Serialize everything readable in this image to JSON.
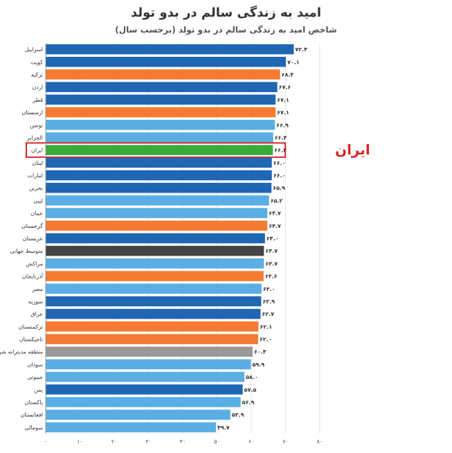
{
  "chart_data": {
    "type": "bar",
    "orientation": "horizontal",
    "title": "امید به زندگی سالم در بدو تولد",
    "subtitle": "شاخص امید به زندگی سالم در بدو تولد (برحسب سال)",
    "categories": [
      "اسراییل",
      "کویت",
      "ترکیه",
      "اردن",
      "قطر",
      "ارمنستان",
      "تونس",
      "الجزایر",
      "ایران",
      "لبنان",
      "امارات",
      "بحرین",
      "لیبی",
      "عمان",
      "گرجستان",
      "عربستان",
      "متوسط جهانی",
      "مراکش",
      "آذربایجان",
      "مصر",
      "سوریه",
      "عراق",
      "ترکمنستان",
      "تاجیکستان",
      "منطقه مدیترانه شرقی",
      "سودان",
      "جیبوتی",
      "یمن",
      "پاکستان",
      "افغانستان",
      "سومالی"
    ],
    "values": [
      72.4,
      70.1,
      68.4,
      67.6,
      67.1,
      67.1,
      66.9,
      66.4,
      66.3,
      66.0,
      66.0,
      65.9,
      65.2,
      64.7,
      64.7,
      64.0,
      63.7,
      63.7,
      63.6,
      63.0,
      62.9,
      62.7,
      62.1,
      62.0,
      60.4,
      59.9,
      58.0,
      57.5,
      56.9,
      53.9,
      49.7
    ],
    "value_labels": [
      "۷۲.۴",
      "۷۰.۱",
      "۶۸.۴",
      "۶۷.۶",
      "۶۷.۱",
      "۶۷.۱",
      "۶۶.۹",
      "۶۶.۴",
      "۶۶.۳",
      "۶۶.۰",
      "۶۶.۰",
      "۶۵.۹",
      "۶۵.۲",
      "۶۴.۷",
      "۶۴.۷",
      "۶۴.۰",
      "۶۳.۷",
      "۶۳.۷",
      "۶۳.۶",
      "۶۳.۰",
      "۶۲.۹",
      "۶۲.۷",
      "۶۲.۱",
      "۶۲.۰",
      "۶۰.۴",
      "۵۹.۹",
      "۵۸.۰",
      "۵۷.۵",
      "۵۶.۹",
      "۵۳.۹",
      "۴۹.۷"
    ],
    "colors": [
      "#1f66b3",
      "#1f66b3",
      "#f47b31",
      "#1f66b3",
      "#1f66b3",
      "#f47b31",
      "#5aaee3",
      "#5aaee3",
      "#3aaa3a",
      "#1f66b3",
      "#1f66b3",
      "#1f66b3",
      "#5aaee3",
      "#5aaee3",
      "#f47b31",
      "#1f66b3",
      "#444444",
      "#5aaee3",
      "#f47b31",
      "#5aaee3",
      "#1f66b3",
      "#1f66b3",
      "#f47b31",
      "#f47b31",
      "#999999",
      "#5aaee3",
      "#5aaee3",
      "#1f66b3",
      "#5aaee3",
      "#5aaee3",
      "#5aaee3"
    ],
    "highlight": {
      "category": "ایران",
      "outline_color": "#d62728"
    },
    "callout": "ایران",
    "xlim": [
      0,
      80
    ],
    "x_ticks": [
      0,
      10,
      20,
      30,
      40,
      50,
      60,
      70,
      80
    ],
    "x_tick_labels": [
      "۰",
      "۱۰",
      "۲۰",
      "۳۰",
      "۴۰",
      "۵۰",
      "۶۰",
      "۷۰",
      "۸۰"
    ],
    "grid": true
  }
}
